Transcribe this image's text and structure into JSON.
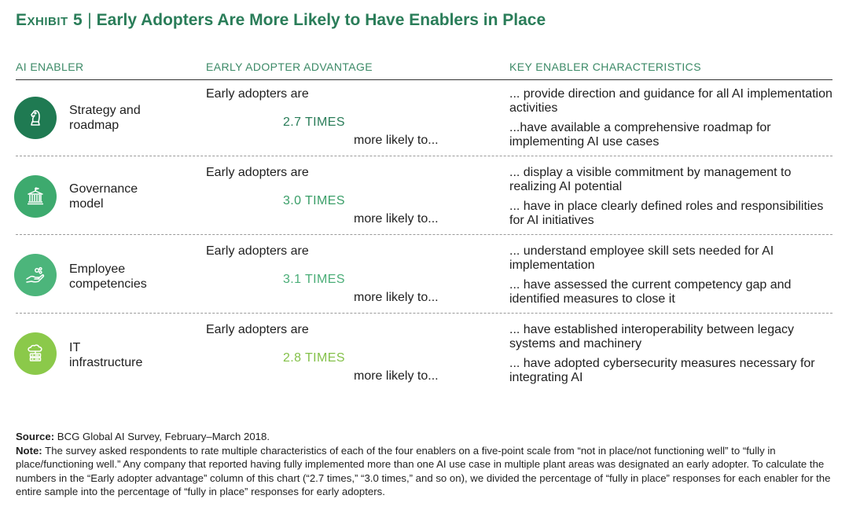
{
  "title": {
    "exhibit": "Exhibit 5",
    "separator": "|",
    "text": "Early Adopters Are More Likely to Have Enablers in Place"
  },
  "headers": {
    "enabler": "AI ENABLER",
    "advantage": "EARLY ADOPTER ADVANTAGE",
    "characteristics": "KEY ENABLER CHARACTERISTICS"
  },
  "colors": {
    "title": "#2a7d59",
    "row1": "#1f7a52",
    "row2": "#3daa6e",
    "row3": "#4cb57b",
    "row4": "#8bc94a"
  },
  "rows": [
    {
      "icon": "chess-knight-icon",
      "enabler": [
        "Strategy and",
        "roadmap"
      ],
      "early_adopters": "Early adopters are",
      "times": "2.7 TIMES",
      "more_likely": "more likely to...",
      "characteristics": [
        "... provide direction and guidance for all AI implementation activities",
        "...have available a comprehensive roadmap for implementing AI use cases"
      ]
    },
    {
      "icon": "government-building-icon",
      "enabler": [
        "Governance",
        "model"
      ],
      "early_adopters": "Early adopters are",
      "times": "3.0 TIMES",
      "more_likely": "more likely to...",
      "characteristics": [
        "... display a visible commitment by management to realizing AI potential",
        "... have in place clearly defined roles and responsibilities for AI initiatives"
      ]
    },
    {
      "icon": "hand-skills-icon",
      "enabler": [
        "Employee",
        "competencies"
      ],
      "early_adopters": "Early adopters are",
      "times": "3.1 TIMES",
      "more_likely": "more likely to...",
      "characteristics": [
        "... understand employee skill sets needed for AI implementation",
        "... have assessed the current competency gap and identified measures to close it"
      ]
    },
    {
      "icon": "cloud-server-icon",
      "enabler": [
        "IT",
        "infrastructure"
      ],
      "early_adopters": "Early adopters are",
      "times": "2.8 TIMES",
      "more_likely": "more likely to...",
      "characteristics": [
        "... have established interoperability between legacy systems and machinery",
        "... have adopted cybersecurity measures necessary for integrating AI"
      ]
    }
  ],
  "source": {
    "label": "Source:",
    "text": "BCG Global AI Survey, February–March 2018."
  },
  "note": {
    "label": "Note:",
    "text": "The survey asked respondents to rate multiple characteristics of each of the four enablers on a five-point scale from “not in place/not functioning well” to “fully in place/functioning well.” Any company that reported having fully implemented more than one AI use case in multiple plant areas was designated an early adopter. To calculate the numbers in the “Early adopter advantage” column of this chart (“2.7 times,” “3.0 times,” and so on), we divided the percentage of “fully in place” responses for each enabler for the entire sample into the percentage of “fully in place” responses for early adopters."
  }
}
